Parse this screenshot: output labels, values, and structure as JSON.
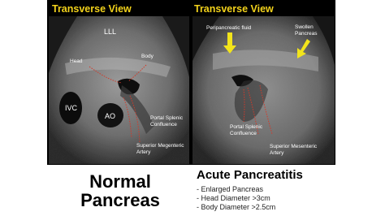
{
  "left_panel": {
    "view_label": "Transverse View",
    "annotations": {
      "lll": "LLL",
      "head": "Head",
      "body": "Body",
      "ivc": "IVC",
      "ao": "AO",
      "confluence": [
        "Portal Splenic",
        "Confluence"
      ],
      "sma": [
        "Superior Megenteric",
        "Artery"
      ]
    },
    "caption": [
      "Normal",
      "Pancreas"
    ]
  },
  "right_panel": {
    "view_label": "Transverse View",
    "annotations": {
      "fluid": "Peripancreatic fluid",
      "swollen": [
        "Swollen",
        "Pancreas"
      ],
      "confluence": [
        "Portal Splenic",
        "Confluence"
      ],
      "sma": [
        "Superior Mesenteric",
        "Artery"
      ]
    },
    "title": "Acute Pancreatitis",
    "bullets": [
      "- Enlarged Pancreas",
      "- Head Diameter >3cm",
      "- Body Diameter >2.5cm"
    ]
  }
}
